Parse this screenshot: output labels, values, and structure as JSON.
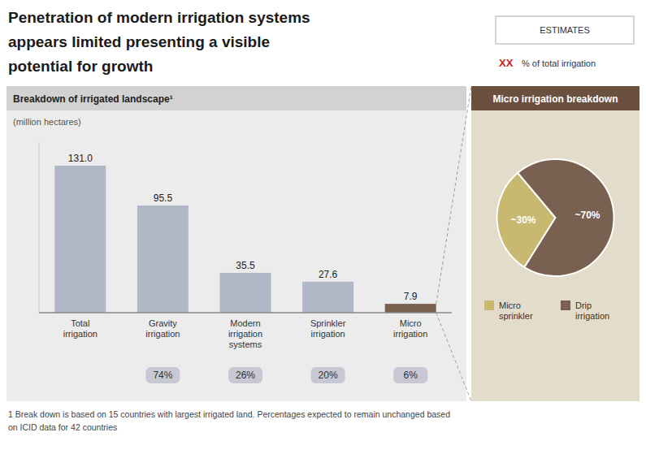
{
  "title": "Penetration of modern irrigation systems\nappears limited presenting a visible\npotential for growth",
  "annotations": [
    "ESTIMATES",
    "XX",
    "% of total irrigation",
    "1 Break down is based on 15 countries with largest irrigated land. Percentages expected to remain unchanged based",
    "   on ICID data for 42 countries"
  ],
  "chart_data": [
    {
      "type": "bar",
      "title": "Breakdown of irrigated landscape¹",
      "subtitle": "(million hectares)",
      "categories": [
        "Total\nirrigation",
        "Gravity\nirrigation",
        "Modern\nirrigation\nsystems",
        "Sprinkler\nirrigation",
        "Micro\nirrigation"
      ],
      "values": [
        131.0,
        95.5,
        35.5,
        27.6,
        7.9
      ],
      "value_labels": [
        "131.0",
        "95.5",
        "35.5",
        "27.6",
        "7.9"
      ],
      "colors": [
        "#b0b8c8",
        "#b0b8c8",
        "#b0b8c8",
        "#b0b8c8",
        "#7a6050"
      ],
      "shares": [
        null,
        74,
        26,
        20,
        6
      ],
      "share_labels": [
        null,
        "74%",
        "26%",
        "20%",
        "6%"
      ],
      "ylim": [
        0,
        152
      ],
      "data_labels": true,
      "tick_labels": "x",
      "grid": false
    },
    {
      "type": "pie",
      "title": "Micro irrigation breakdown",
      "categories": [
        "Micro\nsprinkler",
        "Drip\nirrigation"
      ],
      "values": [
        30,
        70
      ],
      "value_labels": [
        "~30%",
        "~70%"
      ],
      "colors": [
        "#c8b870",
        "#7a6050"
      ],
      "data_labels": true,
      "legend": "bottom"
    }
  ]
}
